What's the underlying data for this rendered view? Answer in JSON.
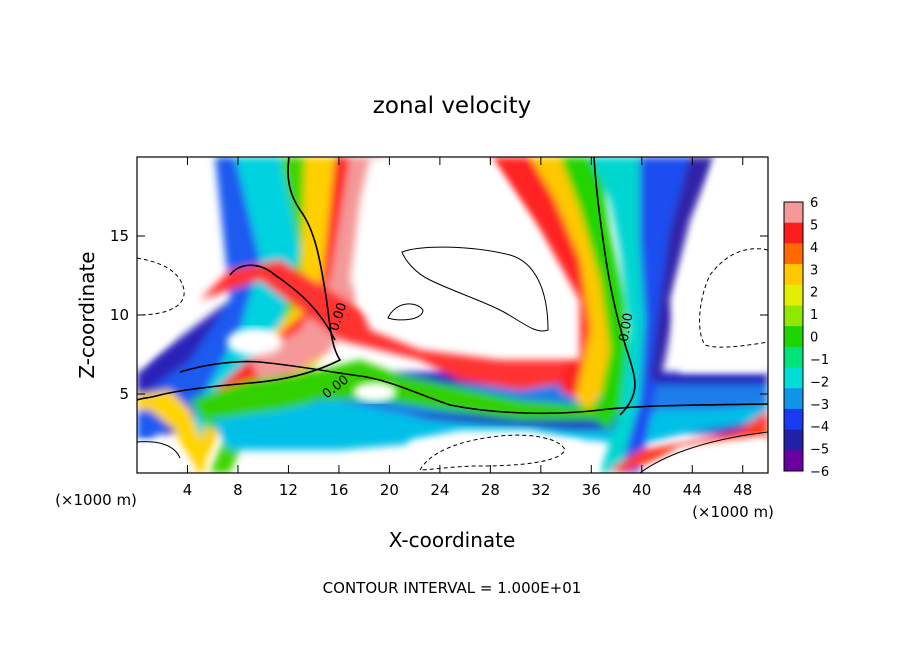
{
  "chart_data": {
    "type": "heatmap",
    "title": "zonal velocity",
    "xlabel": "X-coordinate",
    "ylabel": "Z-coordinate",
    "x_unit_left": "(×1000 m)",
    "x_unit_right": "(×1000 m)",
    "footer": "CONTOUR INTERVAL = 1.000E+01",
    "xlim": [
      0,
      50
    ],
    "ylim": [
      0,
      20
    ],
    "x_ticks": [
      4,
      8,
      12,
      16,
      20,
      24,
      28,
      32,
      36,
      40,
      44,
      48
    ],
    "y_ticks": [
      5,
      10,
      15
    ],
    "contour_labels": [
      "0.00",
      "0.00",
      "0.00"
    ],
    "colorbar": {
      "min": -6,
      "max": 6,
      "ticks": [
        "6",
        "5",
        "4",
        "3",
        "2",
        "1",
        "0",
        "−1",
        "−2",
        "−3",
        "−4",
        "−5",
        "−6"
      ],
      "colors": [
        "#f49898",
        "#fe1d1d",
        "#ff6a00",
        "#ffc800",
        "#e0f000",
        "#8ee800",
        "#1ed400",
        "#00e27a",
        "#00dcd6",
        "#1294ea",
        "#1a3cf0",
        "#2020a8",
        "#6a00a4"
      ]
    },
    "grid": false,
    "legend": "colorbar-right"
  }
}
